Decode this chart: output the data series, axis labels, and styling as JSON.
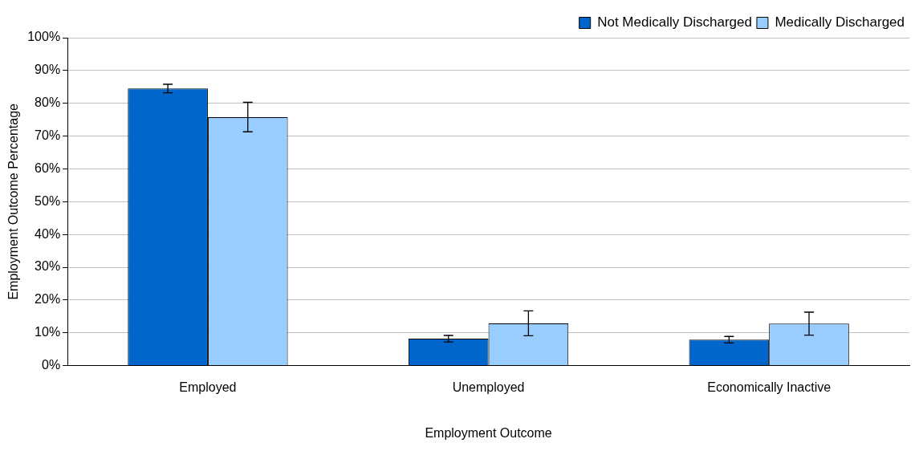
{
  "chart_data": {
    "type": "bar",
    "xlabel": "Employment Outcome",
    "ylabel": "Employment Outcome Percentage",
    "categories": [
      "Employed",
      "Unemployed",
      "Economically Inactive"
    ],
    "series": [
      {
        "name": "Not Medically Discharged",
        "color": "#0066cc",
        "values": [
          84.5,
          8.2,
          7.9
        ],
        "errors": [
          1.3,
          1,
          1
        ]
      },
      {
        "name": "Medically Discharged",
        "color": "#99ccff",
        "values": [
          75.8,
          12.9,
          12.8
        ],
        "errors": [
          4.5,
          3.8,
          3.5
        ]
      }
    ],
    "ylim": [
      0,
      100
    ],
    "yticks": [
      {
        "value": 0,
        "label": "0%"
      },
      {
        "value": 10,
        "label": "10%"
      },
      {
        "value": 20,
        "label": "20%"
      },
      {
        "value": 30,
        "label": "30%"
      },
      {
        "value": 40,
        "label": "40%"
      },
      {
        "value": 50,
        "label": "50%"
      },
      {
        "value": 60,
        "label": "60%"
      },
      {
        "value": 70,
        "label": "70%"
      },
      {
        "value": 80,
        "label": "80%"
      },
      {
        "value": 90,
        "label": "90%"
      },
      {
        "value": 100,
        "label": "100%"
      }
    ],
    "grid": "y",
    "legend": "top right"
  }
}
